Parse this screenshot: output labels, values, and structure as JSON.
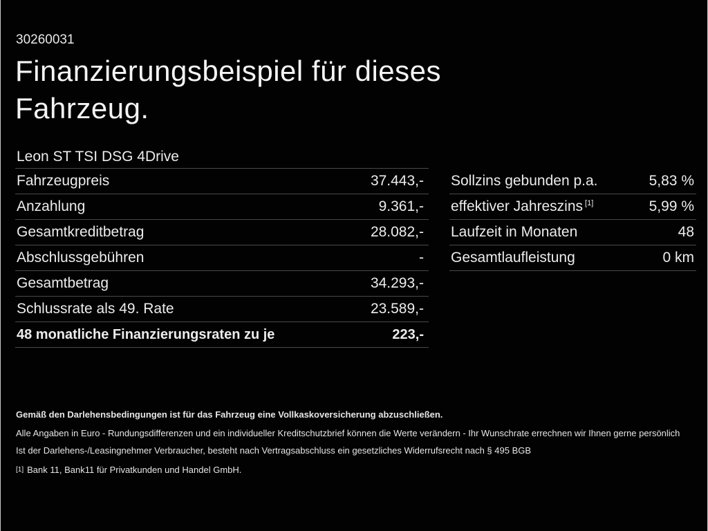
{
  "page": {
    "id_number": "30260031",
    "title_line1": "Finanzierungsbeispiel für dieses",
    "title_line2": "Fahrzeug.",
    "vehicle_name": "Leon ST TSI DSG 4Drive"
  },
  "left_table": {
    "rows": [
      {
        "label": "Fahrzeugpreis",
        "value": "37.443,-"
      },
      {
        "label": "Anzahlung",
        "value": "9.361,-"
      },
      {
        "label": "Gesamtkreditbetrag",
        "value": "28.082,-"
      },
      {
        "label": "Abschlussgebühren",
        "value": "-"
      },
      {
        "label": "Gesamtbetrag",
        "value": "34.293,-"
      },
      {
        "label": "Schlussrate als 49. Rate",
        "value": "23.589,-"
      },
      {
        "label": "48 monatliche Finanzierungsraten zu je",
        "value": "223,-"
      }
    ]
  },
  "right_table": {
    "rows": [
      {
        "label": "Sollzins gebunden p.a.",
        "sup": "",
        "value": "5,83 %"
      },
      {
        "label": "effektiver Jahreszins",
        "sup": "[1]",
        "value": "5,99 %"
      },
      {
        "label": "Laufzeit in Monaten",
        "sup": "",
        "value": "48"
      },
      {
        "label": "Gesamtlaufleistung",
        "sup": "",
        "value": "0 km"
      }
    ]
  },
  "footnotes": {
    "bold_line": "Gemäß den Darlehensbedingungen ist für das Fahrzeug eine Vollkaskoversicherung abzuschließen.",
    "line2": "Alle Angaben in Euro - Rundungsdifferenzen und ein individueller Kreditschutzbrief können die Werte verändern - Ihr Wunschrate errechnen wir Ihnen gerne persönlich",
    "line3": "Ist der Darlehens-/Leasingnehmer Verbraucher, besteht nach Vertragsabschluss ein gesetzliches Widerrufsrecht nach § 495 BGB",
    "ref_marker": "[1]",
    "ref_text": "Bank 11, Bank11 für Privatkunden und Handel GmbH."
  },
  "colors": {
    "background": "#020202",
    "text": "#ececec",
    "divider": "#4a4a4a",
    "edge_line": "#c9c9c9"
  }
}
